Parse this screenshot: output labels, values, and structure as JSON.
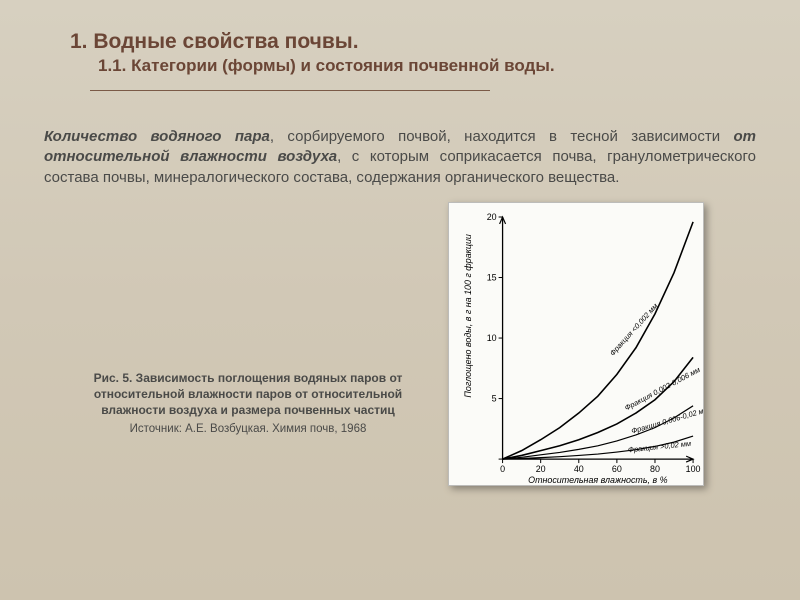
{
  "heading": {
    "h1": "1. Водные свойства почвы.",
    "h2": "1.1. Категории (формы) и состояния почвенной воды."
  },
  "paragraph": {
    "lead": "Количество водяного пара",
    "mid1": ", сорбируемого почвой, находится в тесной зависимости ",
    "em2": "от относительной влажности воздуха",
    "tail": ", с которым соприкасается почва, гранулометрического состава почвы, минералогического состава, содержания органического вещества."
  },
  "caption": {
    "title": "Рис. 5. Зависимость поглощения водяных паров от относительной влажности паров от относительной влажности воздуха и размера почвенных частиц",
    "source": "Источник: А.Е. Возбуцкая. Химия почв, 1968"
  },
  "chart": {
    "type": "line",
    "background_color": "#fbfbf8",
    "axis_color": "#000000",
    "xlim": [
      0,
      100
    ],
    "ylim": [
      0,
      20
    ],
    "xticks": [
      0,
      20,
      40,
      60,
      80,
      100
    ],
    "yticks": [
      0,
      5,
      10,
      15,
      20
    ],
    "xlabel": "Относительная влажность, в %",
    "ylabel": "Поглощено воды, в г на 100 г фракции",
    "label_fontsize": 9,
    "tick_fontsize": 9,
    "line_color": "#000000",
    "series": [
      {
        "name": "Фракция <0,002 мм",
        "width": 1.6,
        "points": [
          [
            0,
            0
          ],
          [
            10,
            0.7
          ],
          [
            20,
            1.6
          ],
          [
            30,
            2.6
          ],
          [
            40,
            3.8
          ],
          [
            50,
            5.2
          ],
          [
            60,
            7.0
          ],
          [
            70,
            9.2
          ],
          [
            80,
            12.0
          ],
          [
            90,
            15.4
          ],
          [
            100,
            19.6
          ]
        ]
      },
      {
        "name": "Фракция 0,002-0,006 мм",
        "width": 1.6,
        "points": [
          [
            0,
            0
          ],
          [
            10,
            0.3
          ],
          [
            20,
            0.7
          ],
          [
            30,
            1.1
          ],
          [
            40,
            1.6
          ],
          [
            50,
            2.2
          ],
          [
            60,
            2.9
          ],
          [
            70,
            3.8
          ],
          [
            80,
            4.9
          ],
          [
            90,
            6.4
          ],
          [
            100,
            8.4
          ]
        ]
      },
      {
        "name": "Фракция 0,006-0,02 мм",
        "width": 1.2,
        "points": [
          [
            0,
            0
          ],
          [
            10,
            0.15
          ],
          [
            20,
            0.35
          ],
          [
            30,
            0.55
          ],
          [
            40,
            0.8
          ],
          [
            50,
            1.1
          ],
          [
            60,
            1.5
          ],
          [
            70,
            2.0
          ],
          [
            80,
            2.6
          ],
          [
            90,
            3.4
          ],
          [
            100,
            4.4
          ]
        ]
      },
      {
        "name": "Фракция >0,02 мм",
        "width": 1.2,
        "points": [
          [
            0,
            0
          ],
          [
            10,
            0.05
          ],
          [
            20,
            0.12
          ],
          [
            30,
            0.2
          ],
          [
            40,
            0.3
          ],
          [
            50,
            0.42
          ],
          [
            60,
            0.58
          ],
          [
            70,
            0.78
          ],
          [
            80,
            1.05
          ],
          [
            90,
            1.4
          ],
          [
            100,
            1.9
          ]
        ]
      }
    ],
    "curve_labels": [
      {
        "text": "Фракция <0,002 мм",
        "x": 58,
        "y": 8.5,
        "rot": -48
      },
      {
        "text": "Фракция 0,002-0,006 мм",
        "x": 65,
        "y": 4.0,
        "rot": -28
      },
      {
        "text": "Фракция 0,006-0,02 мм",
        "x": 68,
        "y": 2.1,
        "rot": -16
      },
      {
        "text": "Фракция >0,02 мм",
        "x": 66,
        "y": 0.55,
        "rot": -6
      }
    ]
  }
}
